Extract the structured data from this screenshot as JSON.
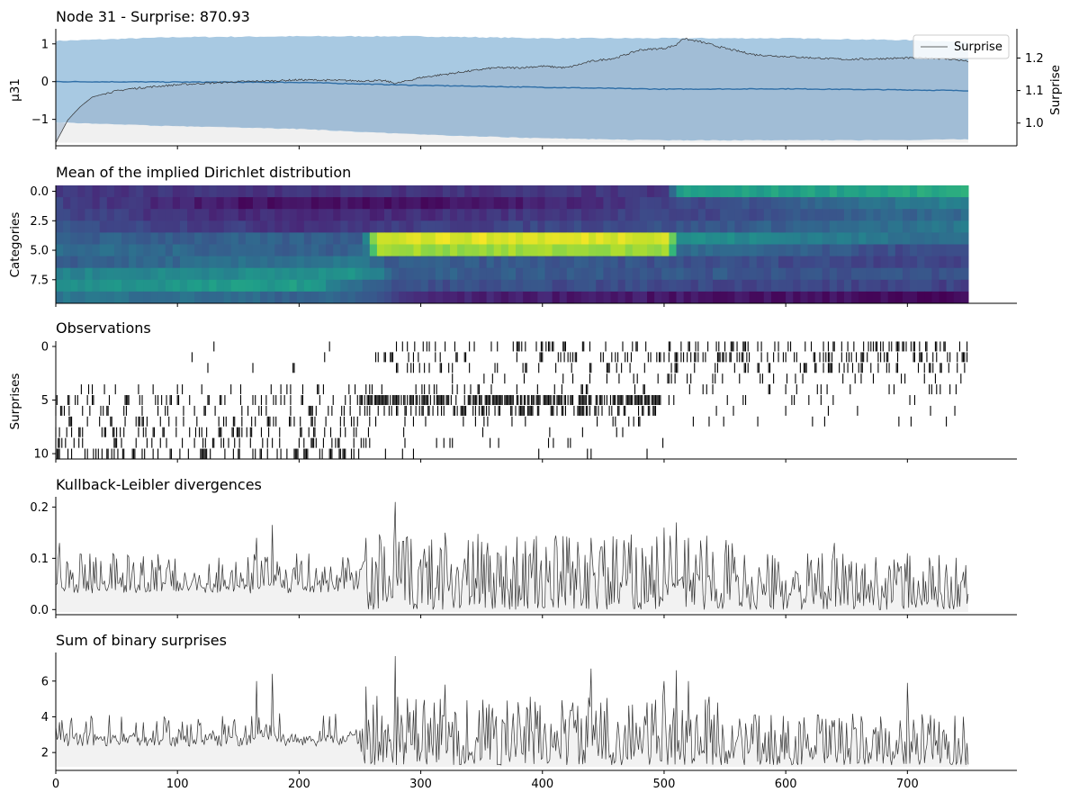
{
  "chart_data": [
    {
      "type": "line",
      "title": "Node 31 - Surprise: 870.93",
      "ylabel": "$\\mu_{31}$",
      "ylabel_display": "μ31",
      "ylabel_right": "Surprise",
      "ylim": [
        -1.7,
        1.4
      ],
      "ylim_right": [
        0.93,
        1.29
      ],
      "yticks": [
        -1,
        0,
        1
      ],
      "yticks_right": [
        1.0,
        1.1,
        1.2
      ],
      "xlim": [
        0,
        790
      ],
      "legend": {
        "entries": [
          "Surprise"
        ],
        "placement": "top-right"
      },
      "series": [
        {
          "name": "Surprise",
          "axis": "right",
          "color": "#333333",
          "x": [
            0,
            10,
            20,
            30,
            45,
            60,
            80,
            100,
            120,
            150,
            180,
            200,
            220,
            250,
            270,
            280,
            300,
            320,
            340,
            360,
            380,
            400,
            420,
            440,
            460,
            480,
            500,
            510,
            515,
            530,
            550,
            575,
            600,
            625,
            650,
            675,
            700,
            720,
            740,
            750
          ],
          "y": [
            0.94,
            1.01,
            1.05,
            1.08,
            1.095,
            1.105,
            1.112,
            1.118,
            1.122,
            1.127,
            1.13,
            1.133,
            1.132,
            1.13,
            1.13,
            1.122,
            1.14,
            1.15,
            1.16,
            1.17,
            1.17,
            1.175,
            1.17,
            1.19,
            1.2,
            1.225,
            1.23,
            1.24,
            1.26,
            1.25,
            1.23,
            1.21,
            1.205,
            1.2,
            1.196,
            1.198,
            1.2,
            1.2,
            1.195,
            1.19
          ]
        },
        {
          "name": "μ31 mean",
          "axis": "left",
          "color": "#2f6ea6",
          "x": [
            0,
            100,
            200,
            300,
            400,
            500,
            600,
            700,
            750
          ],
          "y": [
            0.0,
            -0.01,
            -0.02,
            -0.1,
            -0.15,
            -0.2,
            -0.19,
            -0.22,
            -0.24
          ]
        },
        {
          "name": "μ31 band upper",
          "axis": "left",
          "color": "#a8c9e2",
          "x": [
            0,
            100,
            200,
            300,
            400,
            500,
            600,
            700,
            750
          ],
          "y": [
            1.08,
            1.18,
            1.2,
            1.2,
            1.15,
            1.15,
            1.15,
            1.1,
            1.05
          ]
        },
        {
          "name": "μ31 band lower",
          "axis": "left",
          "color": "#a8c9e2",
          "x": [
            0,
            100,
            200,
            300,
            400,
            500,
            600,
            700,
            750
          ],
          "y": [
            -1.08,
            -1.18,
            -1.25,
            -1.4,
            -1.5,
            -1.55,
            -1.55,
            -1.55,
            -1.52
          ]
        }
      ]
    },
    {
      "type": "heatmap",
      "title": "Mean of the implied Dirichlet distribution",
      "ylabel": "Categories",
      "yticks": [
        0.0,
        2.5,
        5.0,
        7.5
      ],
      "n_rows": 10,
      "n_steps": 750,
      "colormap": "viridis",
      "row_segments": [
        [
          [
            0,
            0.15
          ],
          [
            500,
            0.15
          ],
          [
            510,
            0.55
          ],
          [
            750,
            0.6
          ]
        ],
        [
          [
            0,
            0.2
          ],
          [
            150,
            0.05
          ],
          [
            350,
            0.05
          ],
          [
            500,
            0.2
          ],
          [
            750,
            0.45
          ]
        ],
        [
          [
            0,
            0.2
          ],
          [
            200,
            0.1
          ],
          [
            500,
            0.2
          ],
          [
            750,
            0.35
          ]
        ],
        [
          [
            0,
            0.25
          ],
          [
            200,
            0.15
          ],
          [
            500,
            0.25
          ],
          [
            750,
            0.4
          ]
        ],
        [
          [
            0,
            0.3
          ],
          [
            250,
            0.3
          ],
          [
            260,
            0.95
          ],
          [
            500,
            0.95
          ],
          [
            510,
            0.5
          ],
          [
            750,
            0.35
          ]
        ],
        [
          [
            0,
            0.35
          ],
          [
            250,
            0.3
          ],
          [
            260,
            0.85
          ],
          [
            500,
            0.85
          ],
          [
            510,
            0.35
          ],
          [
            750,
            0.2
          ]
        ],
        [
          [
            0,
            0.3
          ],
          [
            250,
            0.4
          ],
          [
            260,
            0.3
          ],
          [
            750,
            0.2
          ]
        ],
        [
          [
            0,
            0.45
          ],
          [
            250,
            0.5
          ],
          [
            280,
            0.3
          ],
          [
            750,
            0.25
          ]
        ],
        [
          [
            0,
            0.5
          ],
          [
            200,
            0.55
          ],
          [
            270,
            0.25
          ],
          [
            750,
            0.2
          ]
        ],
        [
          [
            0,
            0.4
          ],
          [
            250,
            0.3
          ],
          [
            300,
            0.1
          ],
          [
            750,
            0.02
          ]
        ]
      ]
    },
    {
      "type": "scatter",
      "title": "Observations",
      "ylabel": "Surprises",
      "yticks": [
        0,
        5,
        10
      ],
      "ylim": [
        10.5,
        -0.5
      ],
      "marker": "|",
      "color": "#000000",
      "row_ranges": [
        {
          "row": 0,
          "from": 0,
          "to": 750,
          "density_early": 0.01,
          "density_late": 0.3
        },
        {
          "row": 1,
          "from": 0,
          "to": 750,
          "density_early": 0.01,
          "density_late": 0.35
        },
        {
          "row": 2,
          "from": 0,
          "to": 750,
          "density_early": 0.02,
          "density_late": 0.2
        },
        {
          "row": 3,
          "from": 0,
          "to": 750,
          "density_early": 0.02,
          "density_late": 0.1
        },
        {
          "row": 4,
          "from": 0,
          "to": 750,
          "density_early": 0.1,
          "density_late": 0.08
        },
        {
          "row": 5,
          "from": 0,
          "to": 750,
          "density_early": 0.15,
          "density_late": 0.05
        },
        {
          "row": 6,
          "from": 0,
          "to": 750,
          "density_early": 0.15,
          "density_late": 0.04
        },
        {
          "row": 7,
          "from": 0,
          "to": 750,
          "density_early": 0.15,
          "density_late": 0.03
        },
        {
          "row": 8,
          "from": 0,
          "to": 750,
          "density_early": 0.2,
          "density_late": 0.02
        },
        {
          "row": 9,
          "from": 0,
          "to": 750,
          "density_early": 0.2,
          "density_late": 0.02
        },
        {
          "row": 10,
          "from": 0,
          "to": 750,
          "density_early": 0.25,
          "density_late": 0.0
        }
      ]
    },
    {
      "type": "line",
      "title": "Kullback-Leibler divergences",
      "yticks": [
        0.0,
        0.1,
        0.2
      ],
      "ylim": [
        -0.01,
        0.22
      ],
      "fill": "#f2f2f2",
      "color": "#333333",
      "base_level": 0.05,
      "peaks": [
        {
          "x": 3,
          "y": 0.13
        },
        {
          "x": 165,
          "y": 0.14
        },
        {
          "x": 178,
          "y": 0.165
        },
        {
          "x": 255,
          "y": 0.14
        },
        {
          "x": 279,
          "y": 0.21
        },
        {
          "x": 320,
          "y": 0.15
        },
        {
          "x": 355,
          "y": 0.13
        },
        {
          "x": 440,
          "y": 0.14
        },
        {
          "x": 500,
          "y": 0.16
        },
        {
          "x": 510,
          "y": 0.17
        },
        {
          "x": 520,
          "y": 0.14
        },
        {
          "x": 640,
          "y": 0.13
        },
        {
          "x": 700,
          "y": 0.11
        }
      ]
    },
    {
      "type": "line",
      "title": "Sum of binary surprises",
      "yticks": [
        2,
        4,
        6
      ],
      "ylim": [
        1.0,
        7.6
      ],
      "fill": "#f2f2f2",
      "color": "#333333",
      "base_level": 3.0,
      "peaks": [
        {
          "x": 3,
          "y": 3.7
        },
        {
          "x": 165,
          "y": 6.0
        },
        {
          "x": 178,
          "y": 6.4
        },
        {
          "x": 255,
          "y": 5.7
        },
        {
          "x": 279,
          "y": 7.4
        },
        {
          "x": 320,
          "y": 5.8
        },
        {
          "x": 440,
          "y": 6.7
        },
        {
          "x": 500,
          "y": 6.0
        },
        {
          "x": 510,
          "y": 6.6
        },
        {
          "x": 520,
          "y": 6.0
        },
        {
          "x": 700,
          "y": 5.9
        }
      ]
    }
  ],
  "x_axis": {
    "ticks": [
      0,
      100,
      200,
      300,
      400,
      500,
      600,
      700
    ],
    "xlim": [
      0,
      790
    ]
  }
}
